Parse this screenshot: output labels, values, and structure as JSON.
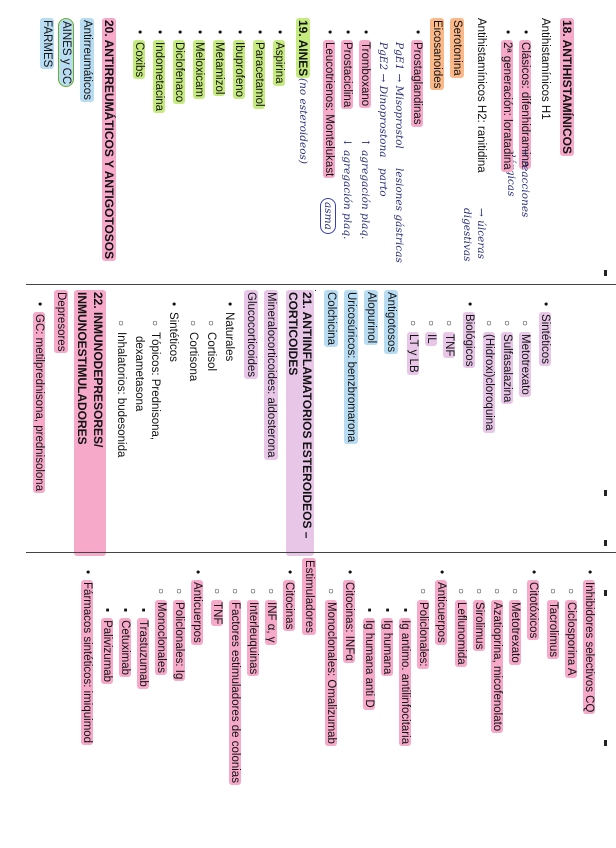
{
  "col1": {
    "s18_title": "18. ANTIHISTAMÍNICOS",
    "antiH1": "Antihistamínicos H1",
    "clasicos": "Clásicos: difenhidramina",
    "clasicos_note": "→ reacciones alérgicas",
    "segunda_gen": "2ª generación: loratadina",
    "antiH2": "Antihistamínicos H2: ranitidina",
    "antiH2_note": "→ úlceras digestivas",
    "serotonina": "Serotonina",
    "eicosanoides": "Eicosanoides",
    "prostaglandinas": "Prostaglandinas",
    "pge1": "PgE1 → Misoprostol",
    "pge1_note": "lesiones gástricas",
    "pge2": "PgE2 → Dinoprostona",
    "pge2_note": "parto",
    "tromboxano": "Tromboxano",
    "tromboxano_note": "↑ agregación plaq.",
    "prostaciclina": "Prostaciclina",
    "prostaciclina_note": "↓ agregación plaq.",
    "leucotrienos": "Leucotrienos: Montelukast",
    "leucotrienos_note": "asma",
    "s19_title": "19. AINES",
    "s19_note": "(no esteroideos)",
    "aines": [
      "Aspirina",
      "Paracetamol",
      "Ibuprofeno",
      "Metamizol",
      "Meloxicam",
      "Diclofenaco",
      "Indometacina",
      "Coxibs"
    ],
    "s20_title": "20. ANTIRREUMÁTICOS Y ANTIGOTOSOS",
    "antirreumaticos": "Antirreumáticos",
    "aines_cc": "AINES y CC",
    "farmes": "FARMES"
  },
  "col2": {
    "sinteticos": "Sintéticos",
    "metotrexato": "Metotrexato",
    "sulfasalazina": "Sulfasalazina",
    "hidroxicloroquina": "(Hidroxi)cloroquina",
    "biologicos": "Biológicos",
    "tnf": "TNF",
    "il": "IL",
    "ltyb": "LT y LB",
    "antigotosos": "Antigotosos",
    "alopurinol": "Alopurinol",
    "uricosuricos": "Uricosúricos: benzbromarona",
    "colchicina": "Colchicina",
    "s21_title": "21. ANTIINFLAMATORIOS ESTEROIDEOS – CORTICOIDES",
    "mineralo": "Mineralocorticoides: aldosterona",
    "gluco": "Glucocorticoides",
    "naturales": "Naturales",
    "cortisol": "Cortisol",
    "cortisona": "Cortisona",
    "sinteticos2": "Sintéticos",
    "topicos": "Tópicos: Prednisona,",
    "dexametasona": "dexametasona",
    "inhalatorios": "Inhalatorios: budesonida",
    "s22_title": "22. INMUNODEPRESORES/ INMUNOESTIMULADORES",
    "depresores": "Depresores",
    "gc": "GC: metilprednisona, prednisolona"
  },
  "col3": {
    "inhibidores_cq": "Inhibidores selectivos CQ",
    "ciclosporina": "Ciclosporina A",
    "tacrolimus": "Tacrolimus",
    "citotoxicos": "Citotóxicos",
    "metotrexato": "Metotrexato",
    "azatioprina": "Azatioprina, micofenolato",
    "sirolimus": "Sirolimus",
    "leflunomida": "Leflunomida",
    "anticuerpos": "Anticuerpos",
    "policlonales": "Policlonales:",
    "ig_antilinfo": "Ig antimo. antilinfocitaria",
    "ig_humana": "Ig humana",
    "ig_anti_d": "Ig humana anti D",
    "citocinas_inf": "Citocinas: INFα",
    "monoclonales": "Monoclonales: Omalizumab",
    "estimuladores": "Estimuladores",
    "citocinas": "Citocinas",
    "inf": "INF α, γ",
    "interleuquinas": "Interleuquinas",
    "factores": "Factores estimuladores de colonias",
    "tnf": "TNF",
    "anticuerpos2": "Anticuerpos",
    "policlonales2": "Policlonales: Ig",
    "monoclonales2": "Monoclonales",
    "trastuzumab": "Trastuzumab",
    "cetuximab": "Cetuximab",
    "palivizumab": "Palivizumab",
    "sinteticos": "Fármacos sintéticos: imiquimod"
  }
}
